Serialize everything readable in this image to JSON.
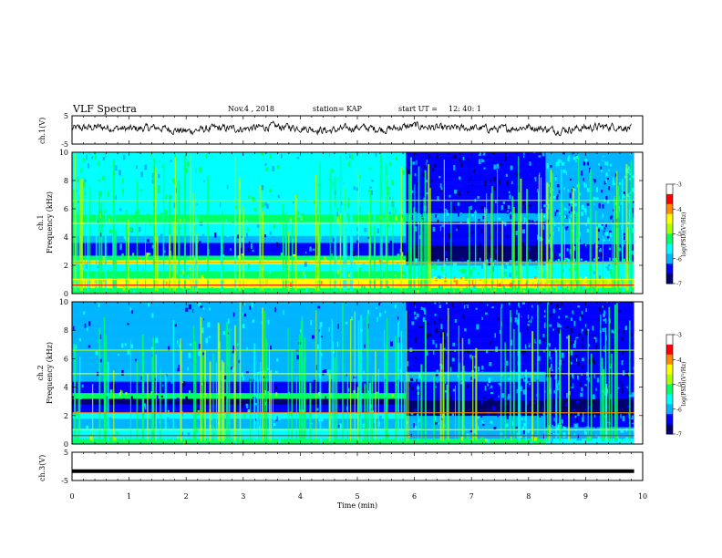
{
  "header": {
    "title": "VLF Spectra",
    "date": "Nov.4 , 2018",
    "station": "station= KAP",
    "start_label": "start UT =",
    "start_time": "12: 40: 1"
  },
  "colors": {
    "trace": "#000000",
    "colormap": [
      "#00006e",
      "#0000ff",
      "#00b4ff",
      "#00ffff",
      "#00ff64",
      "#aaff00",
      "#ffff00",
      "#ff8c00",
      "#ff0000",
      "#ffffff"
    ]
  },
  "chart_data": [
    {
      "type": "line",
      "panel": "ch1-waveform",
      "ylabel": "ch.1(V)",
      "ylim": [
        -5,
        5
      ],
      "yticks": [
        "5",
        "-5"
      ],
      "xlim": [
        0,
        10
      ],
      "description_of_values": "noisy waveform, amplitude about -2 to 3 V",
      "x": [
        0,
        0.5,
        1,
        1.5,
        2,
        2.5,
        3,
        3.5,
        4,
        4.5,
        5,
        5.5,
        6,
        6.5,
        7,
        7.5,
        8,
        8.5,
        9,
        9.5,
        9.8
      ],
      "y": [
        0.5,
        1.0,
        0.3,
        0.8,
        -0.5,
        0.6,
        0.4,
        1.2,
        0.8,
        -0.3,
        0.9,
        0.2,
        1.5,
        0.5,
        0.7,
        0.3,
        1.1,
        -0.2,
        0.8,
        1.3,
        0.6
      ]
    },
    {
      "type": "heatmap",
      "panel": "ch1-spectrogram",
      "ylabel": "ch.1",
      "ylabel2": "Frequency (kHz)",
      "ylim": [
        0,
        10
      ],
      "yticks": [
        "0",
        "2",
        "4",
        "6",
        "8",
        "10"
      ],
      "xlim": [
        0,
        10
      ],
      "colorbar": {
        "label": "log(PSD)(V²/Hz)",
        "range": [
          -7,
          -3
        ],
        "ticks": [
          "-3",
          "-4",
          "-5",
          "-6",
          "-7"
        ]
      },
      "segments": [
        {
          "start": 0,
          "end": 5.85
        },
        {
          "start": 5.85,
          "end": 8.3
        },
        {
          "start": 8.3,
          "end": 9.85
        }
      ]
    },
    {
      "type": "heatmap",
      "panel": "ch2-spectrogram",
      "ylabel": "ch.2",
      "ylabel2": "Frequency (kHz)",
      "ylim": [
        0,
        10
      ],
      "yticks": [
        "0",
        "2",
        "4",
        "6",
        "8",
        "10"
      ],
      "xlim": [
        0,
        10
      ],
      "colorbar": {
        "label": "log(PSD)(V²/Hz)",
        "range": [
          -7,
          -3
        ],
        "ticks": [
          "-3",
          "-4",
          "-5",
          "-6",
          "-7"
        ]
      },
      "segments": [
        {
          "start": 0,
          "end": 5.85
        },
        {
          "start": 5.85,
          "end": 8.3
        },
        {
          "start": 8.3,
          "end": 9.85
        }
      ]
    },
    {
      "type": "line",
      "panel": "ch3-waveform",
      "ylabel": "ch.3(V)",
      "ylim": [
        -5,
        5
      ],
      "yticks": [
        "5",
        "-5"
      ],
      "xlim": [
        0,
        10
      ],
      "x": [
        0,
        9.85
      ],
      "y": [
        -1.7,
        -1.7
      ]
    }
  ],
  "xaxis": {
    "label": "Time (min)",
    "ticks": [
      "0",
      "1",
      "2",
      "3",
      "4",
      "5",
      "6",
      "7",
      "8",
      "9",
      "10"
    ]
  }
}
